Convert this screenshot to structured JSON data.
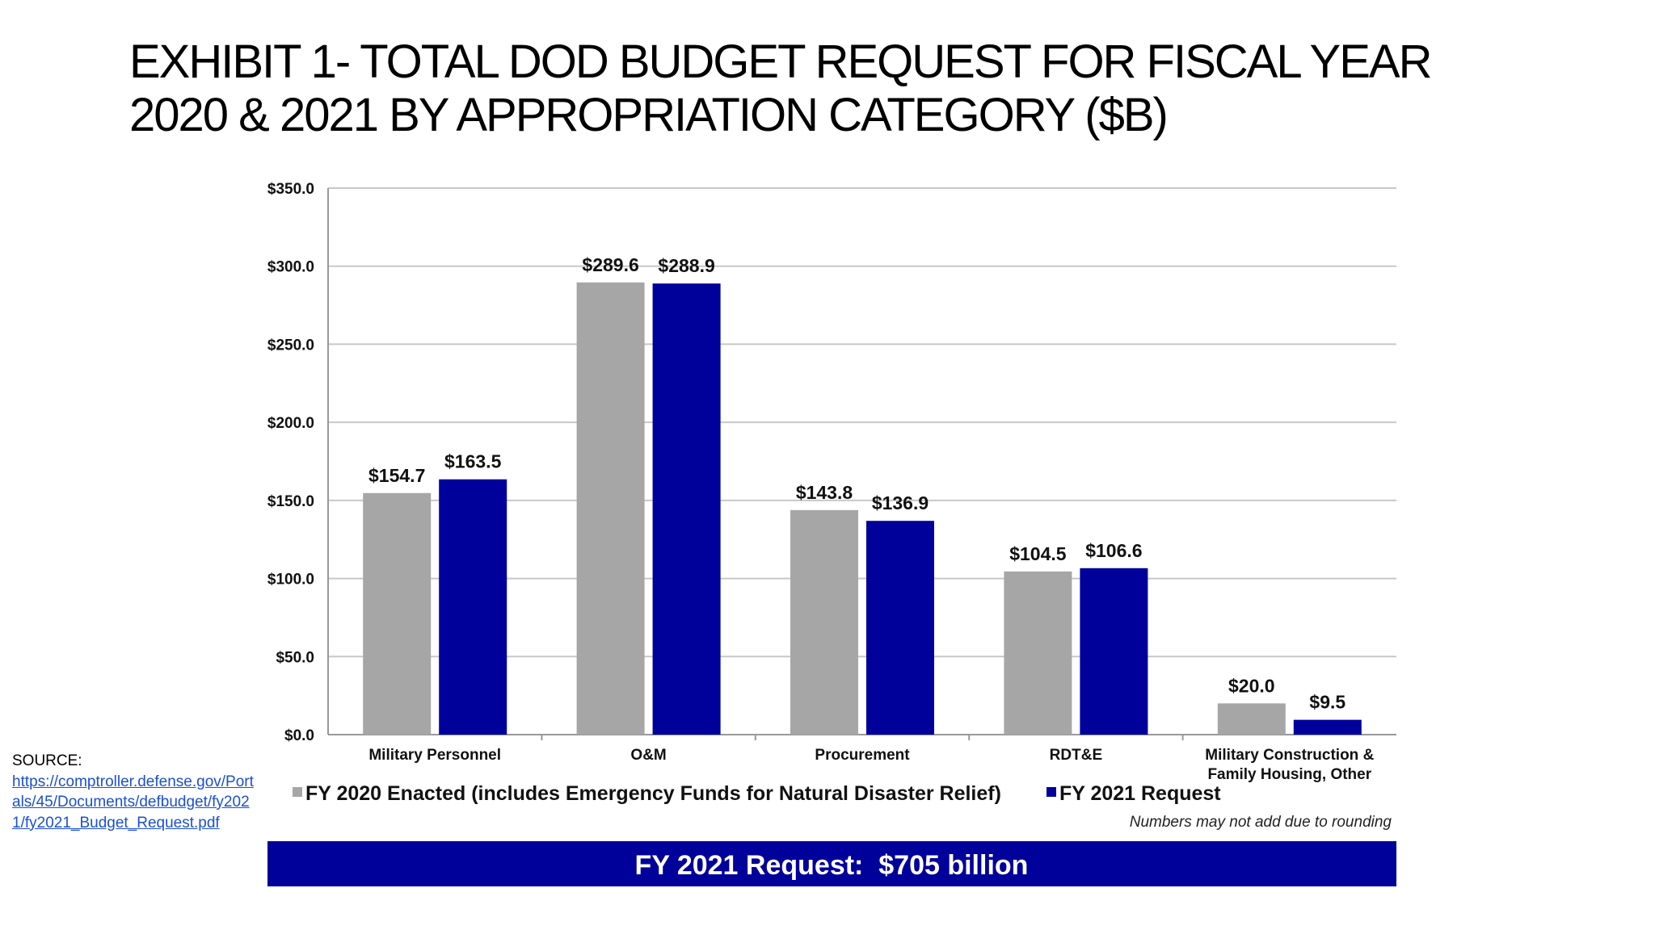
{
  "slide": {
    "title_line1": "EXHIBIT 1- TOTAL DOD BUDGET REQUEST FOR FISCAL YEAR",
    "title_line2": "2020 & 2021 BY APPROPRIATION CATEGORY ($B)"
  },
  "source": {
    "label": "SOURCE:",
    "link": "https://comptroller.defense.gov/Portals/45/Documents/defbudget/fy2021/fy2021_Budget_Request.pdf"
  },
  "chart_data": {
    "type": "bar",
    "title": "",
    "xlabel": "",
    "ylabel": "",
    "ylim": [
      0,
      350
    ],
    "y_ticks": [
      "$0.0",
      "$50.0",
      "$100.0",
      "$150.0",
      "$200.0",
      "$250.0",
      "$300.0",
      "$350.0"
    ],
    "grid": true,
    "legend_position": "bottom",
    "categories": [
      [
        "Military Personnel"
      ],
      [
        "O&M"
      ],
      [
        "Procurement"
      ],
      [
        "RDT&E"
      ],
      [
        "Military Construction &",
        "Family Housing, Other"
      ]
    ],
    "series": [
      {
        "name": "FY 2020 Enacted (includes Emergency Funds for Natural Disaster Relief)",
        "color": "#a6a6a6",
        "values": [
          154.7,
          289.6,
          143.8,
          104.5,
          20.0
        ],
        "labels": [
          "$154.7",
          "$289.6",
          "$143.8",
          "$104.5",
          "$20.0"
        ]
      },
      {
        "name": "FY 2021 Request",
        "color": "#00009b",
        "values": [
          163.5,
          288.9,
          136.9,
          106.6,
          9.5
        ],
        "labels": [
          "$163.5",
          "$288.9",
          "$136.9",
          "$106.6",
          "$9.5"
        ]
      }
    ],
    "note": "Numbers may not add due to rounding",
    "banner": {
      "text": "FY 2021 Request:  $705 billion",
      "color": "#00009b"
    }
  }
}
